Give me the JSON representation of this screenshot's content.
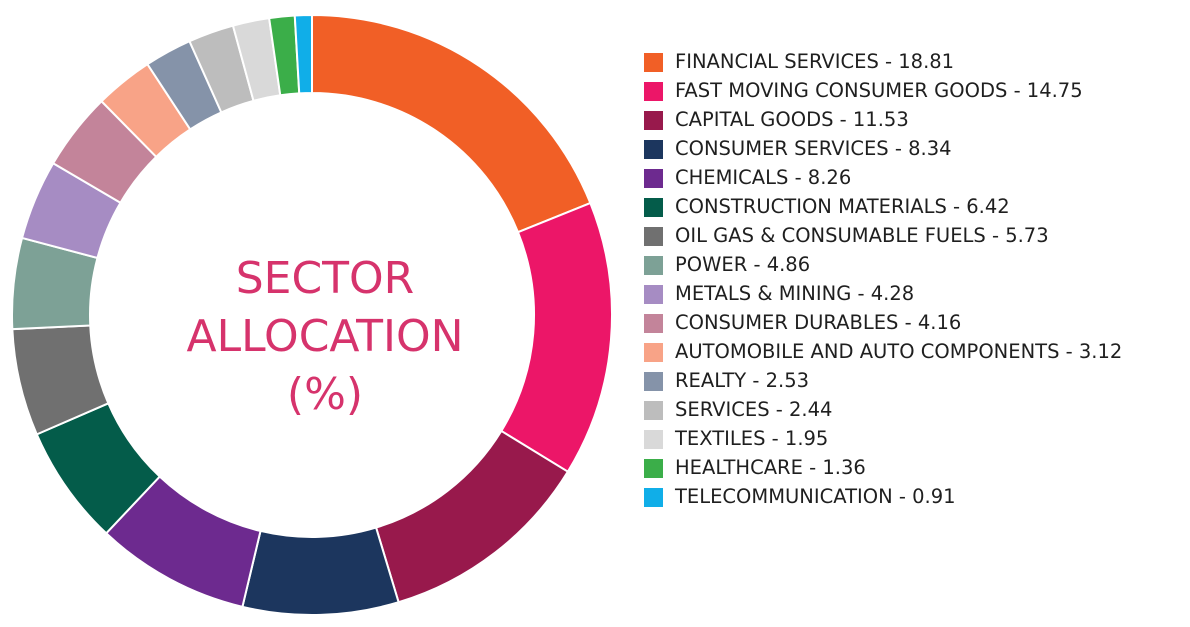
{
  "chart_data": {
    "type": "pie",
    "title_lines": [
      "SECTOR",
      "ALLOCATION",
      "(%)"
    ],
    "legend_position": "right",
    "slices": [
      {
        "label": "FINANCIAL SERVICES - 18.81",
        "value": 18.81,
        "color": "#f15f26"
      },
      {
        "label": "FAST MOVING CONSUMER GOODS - 14.75",
        "value": 14.75,
        "color": "#ec1668"
      },
      {
        "label": "CAPITAL GOODS - 11.53",
        "value": 11.53,
        "color": "#98194c"
      },
      {
        "label": "CONSUMER SERVICES - 8.34",
        "value": 8.34,
        "color": "#1c365e"
      },
      {
        "label": "CHEMICALS - 8.26",
        "value": 8.26,
        "color": "#6d2a8f"
      },
      {
        "label": "CONSTRUCTION MATERIALS - 6.42",
        "value": 6.42,
        "color": "#045c4a"
      },
      {
        "label": "OIL GAS & CONSUMABLE FUELS - 5.73",
        "value": 5.73,
        "color": "#707070"
      },
      {
        "label": "POWER - 4.86",
        "value": 4.86,
        "color": "#7da196"
      },
      {
        "label": "METALS & MINING - 4.28",
        "value": 4.28,
        "color": "#a68cc3"
      },
      {
        "label": "CONSUMER DURABLES - 4.16",
        "value": 4.16,
        "color": "#c3849a"
      },
      {
        "label": "AUTOMOBILE AND AUTO COMPONENTS - 3.12",
        "value": 3.12,
        "color": "#f8a387"
      },
      {
        "label": "REALTY - 2.53",
        "value": 2.53,
        "color": "#8593a9"
      },
      {
        "label": "SERVICES - 2.44",
        "value": 2.44,
        "color": "#bdbdbd"
      },
      {
        "label": "TEXTILES - 1.95",
        "value": 1.95,
        "color": "#d9d9d9"
      },
      {
        "label": "HEALTHCARE - 1.36",
        "value": 1.36,
        "color": "#3bae49"
      },
      {
        "label": "TELECOMMUNICATION - 0.91",
        "value": 0.91,
        "color": "#10aee8"
      }
    ]
  }
}
